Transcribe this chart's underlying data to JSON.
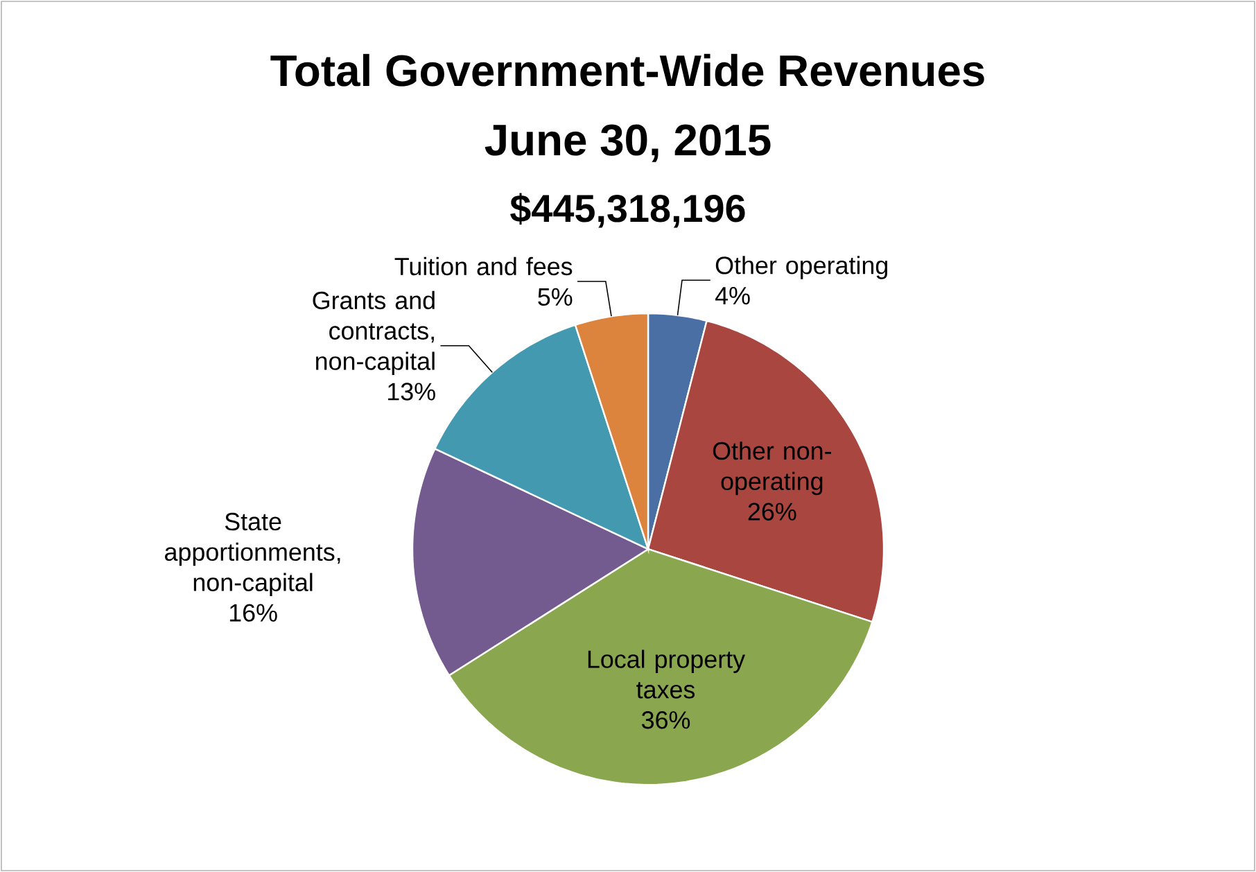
{
  "chart_data": {
    "type": "pie",
    "title": "Total Government-Wide Revenues",
    "subtitle": "June 30, 2015",
    "annotations": [
      "$445,318,196"
    ],
    "categories": [
      "Other operating",
      "Other non-operating",
      "Local property taxes",
      "State apportionments, non-capital",
      "Grants and contracts, non-capital",
      "Tuition and fees"
    ],
    "values": [
      4,
      26,
      36,
      16,
      13,
      5
    ],
    "value_labels": [
      "4%",
      "26%",
      "36%",
      "16%",
      "13%",
      "5%"
    ],
    "colors": [
      "#4a6fa5",
      "#a9463f",
      "#8aa64e",
      "#735a8f",
      "#4399b0",
      "#dc843e"
    ]
  }
}
